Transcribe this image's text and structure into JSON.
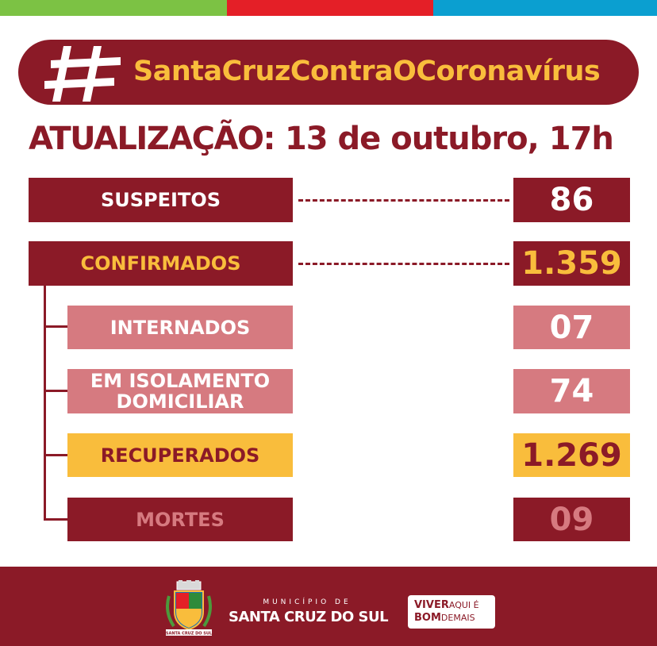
{
  "colors": {
    "green": "#7cc244",
    "red": "#e41f27",
    "blue": "#0b9fd0",
    "maroon": "#8b1a27",
    "pink": "#d67a80",
    "yellow": "#f9bd3c",
    "white": "#ffffff"
  },
  "header": {
    "hashtag": "SantaCruzContraOCoronavírus",
    "icon": "hash-icon"
  },
  "update": {
    "label": "ATUALIZAÇÃO:",
    "date": "13 de outubro, 17h"
  },
  "stats": [
    {
      "label": "SUSPEITOS",
      "value": "86"
    },
    {
      "label": "CONFIRMADOS",
      "value": "1.359"
    },
    {
      "label": "INTERNADOS",
      "value": "07"
    },
    {
      "label_line1": "EM ISOLAMENTO",
      "label_line2": "DOMICILIAR",
      "value": "74"
    },
    {
      "label": "RECUPERADOS",
      "value": "1.269"
    },
    {
      "label": "MORTES",
      "value": "09"
    }
  ],
  "footer": {
    "municipio_label": "MUNICÍPIO DE",
    "municipio_name": "SANTA CRUZ DO SUL",
    "crest_caption": "SANTA CRUZ DO SUL",
    "slogan_line1_bold": "VIVER",
    "slogan_line1_thin": "AQUI É",
    "slogan_line2_bold": "BOM",
    "slogan_line2_thin": "DEMAIS"
  }
}
